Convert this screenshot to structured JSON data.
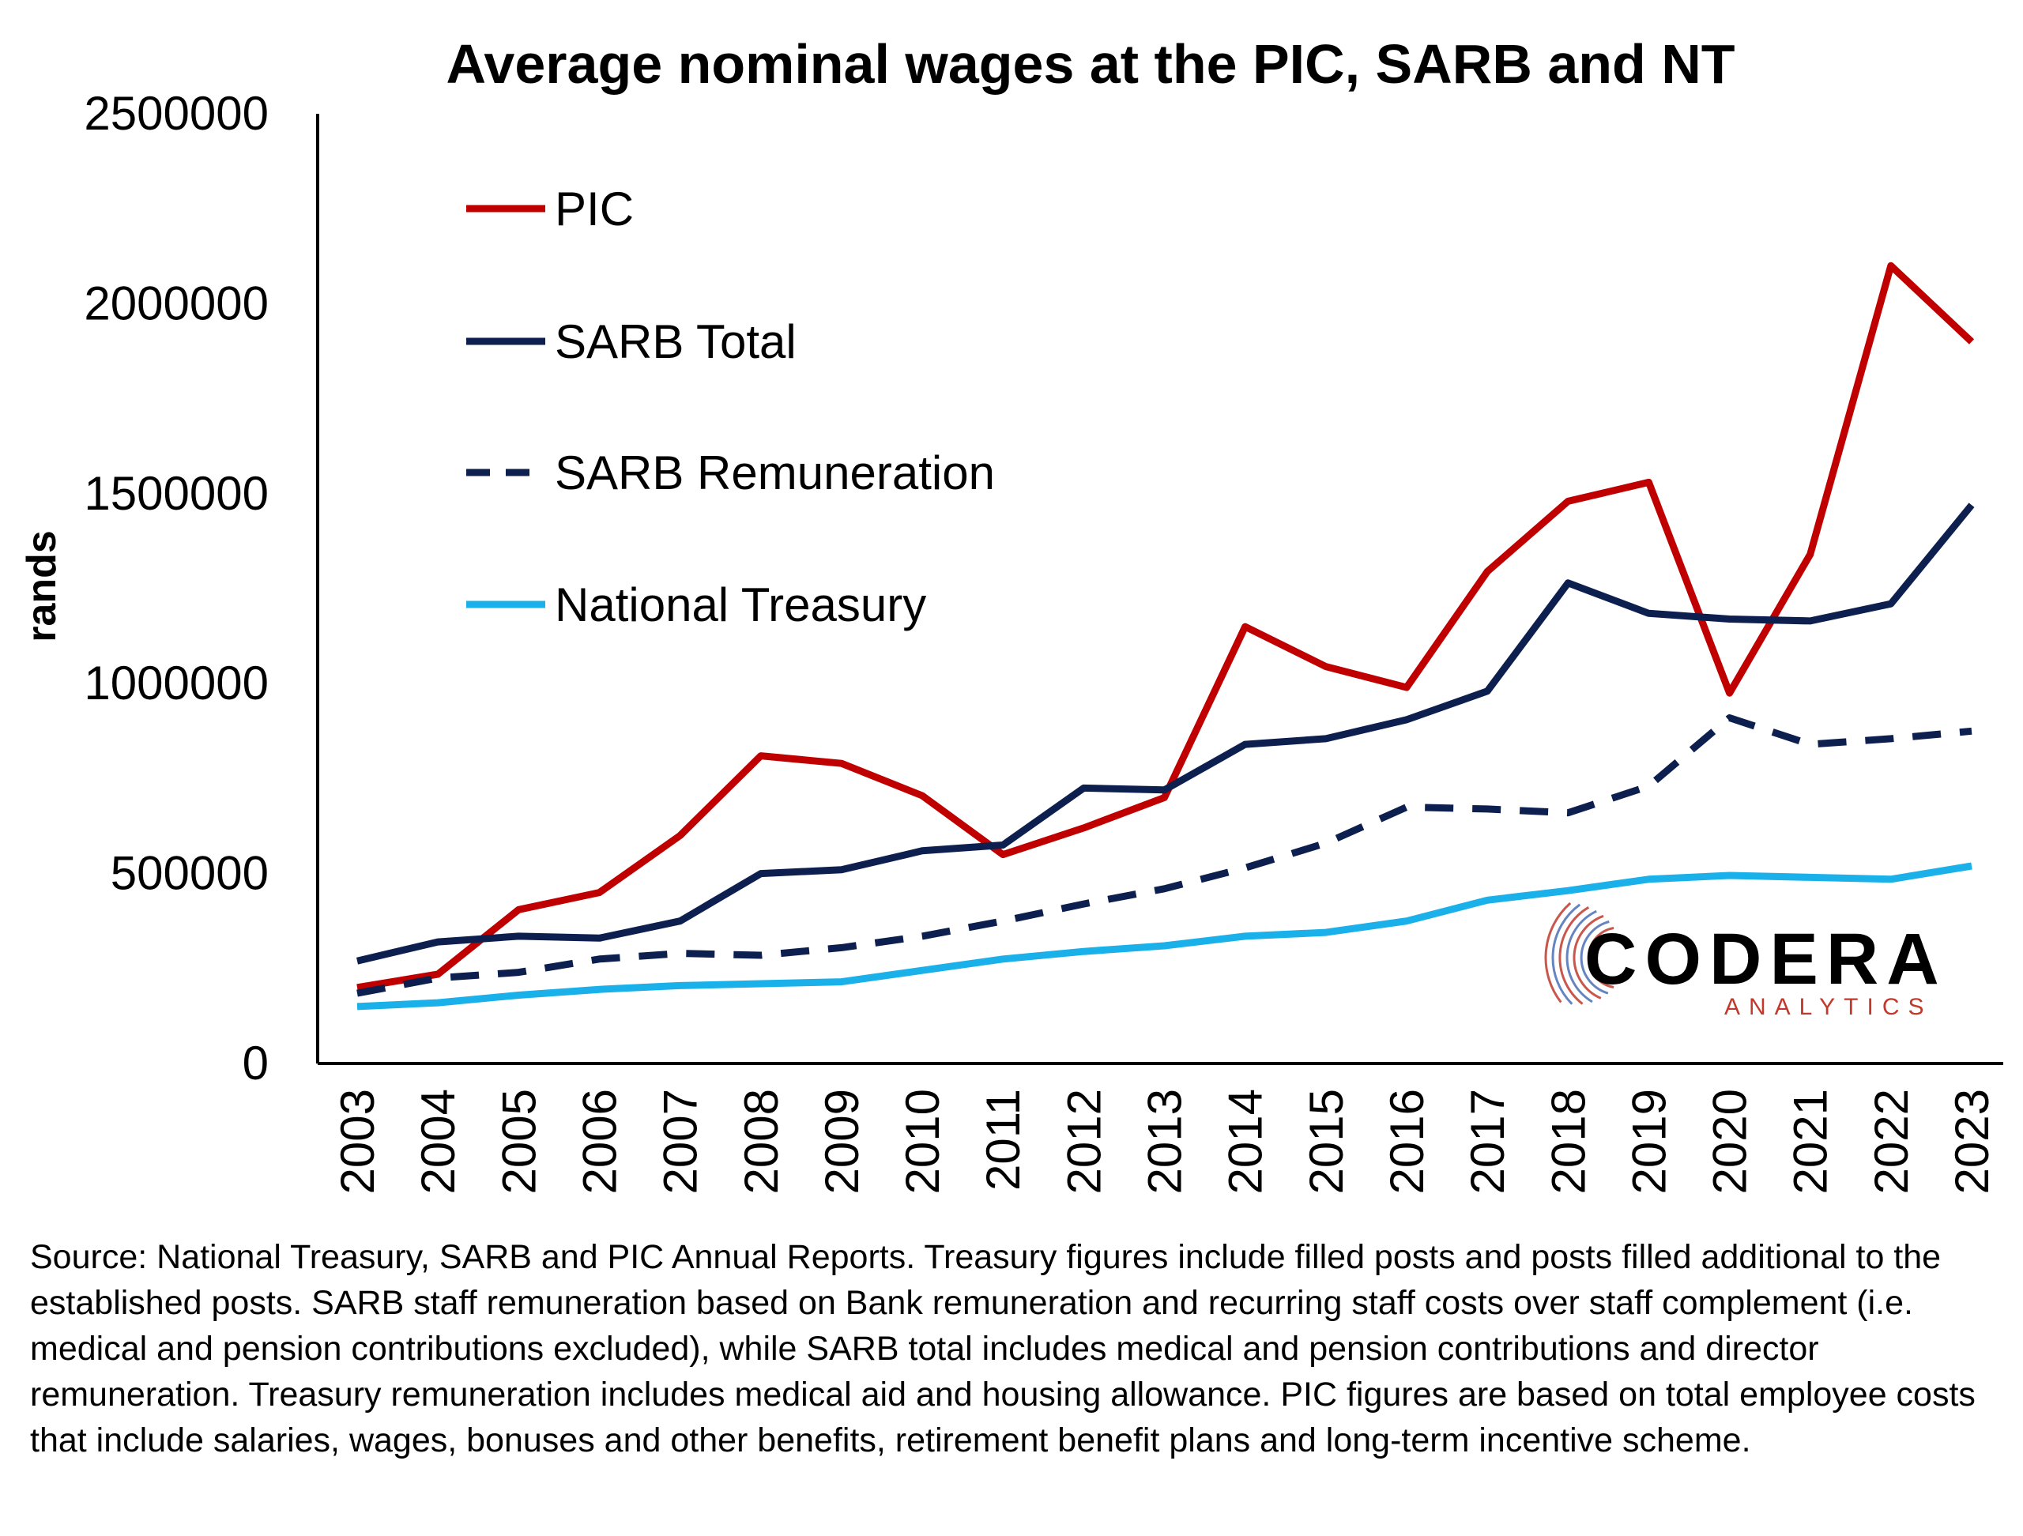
{
  "chart_data": {
    "type": "line",
    "title": "Average nominal wages at the PIC, SARB and NT",
    "ylabel": "rands",
    "xlabel": "",
    "ylim": [
      0,
      2500000
    ],
    "yticks": [
      0,
      500000,
      1000000,
      1500000,
      2000000,
      2500000
    ],
    "ytick_labels": [
      "0",
      "500000",
      "1000000",
      "1500000",
      "2000000",
      "2500000"
    ],
    "x": [
      "2003",
      "2004",
      "2005",
      "2006",
      "2007",
      "2008",
      "2009",
      "2010",
      "2011",
      "2012",
      "2013",
      "2014",
      "2015",
      "2016",
      "2017",
      "2018",
      "2019",
      "2020",
      "2021",
      "2022",
      "2023"
    ],
    "legend_position": "top-left",
    "grid": false,
    "series": [
      {
        "name": "PIC",
        "color": "#c00000",
        "style": "solid",
        "values": [
          200000,
          235000,
          405000,
          450000,
          600000,
          810000,
          790000,
          705000,
          550000,
          620000,
          700000,
          1150000,
          1045000,
          990000,
          1295000,
          1480000,
          1530000,
          975000,
          1340000,
          2100000,
          1900000
        ]
      },
      {
        "name": "SARB Total",
        "color": "#0d1f4f",
        "style": "solid",
        "values": [
          270000,
          320000,
          335000,
          330000,
          375000,
          500000,
          510000,
          560000,
          575000,
          725000,
          720000,
          840000,
          855000,
          905000,
          980000,
          1265000,
          1185000,
          1170000,
          1165000,
          1210000,
          1470000
        ]
      },
      {
        "name": "SARB Remuneration",
        "color": "#0d1f4f",
        "style": "dashed",
        "values": [
          185000,
          225000,
          240000,
          275000,
          290000,
          285000,
          305000,
          335000,
          375000,
          420000,
          460000,
          515000,
          580000,
          675000,
          670000,
          660000,
          730000,
          910000,
          840000,
          855000,
          875000
        ]
      },
      {
        "name": "National Treasury",
        "color": "#1ab0ea",
        "style": "solid",
        "values": [
          150000,
          160000,
          180000,
          195000,
          205000,
          210000,
          215000,
          245000,
          275000,
          295000,
          310000,
          335000,
          345000,
          375000,
          430000,
          455000,
          485000,
          495000,
          490000,
          485000,
          520000
        ]
      }
    ]
  },
  "logo": {
    "name": "CODERA",
    "tagline": "ANALYTICS",
    "colors": {
      "main": "#000000",
      "tagline": "#c0392b",
      "mark_red": "#c0392b",
      "mark_blue": "#4b6fb5"
    }
  },
  "source_note": "Source: National Treasury, SARB and PIC Annual Reports. Treasury figures include filled posts and posts filled additional to the established posts. SARB staff remuneration based on Bank remuneration and recurring staff costs over staff complement (i.e. medical and pension contributions excluded), while SARB total includes medical and pension contributions and director remuneration. Treasury remuneration includes medical aid and housing allowance. PIC figures are based on total employee costs that include salaries, wages, bonuses and other benefits, retirement benefit plans and long-term incentive scheme."
}
